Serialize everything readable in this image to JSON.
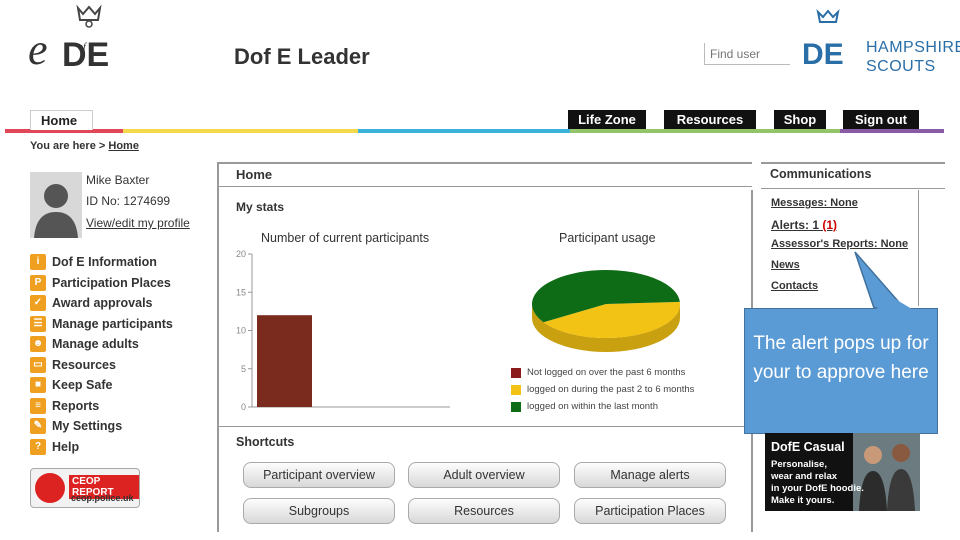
{
  "header": {
    "logo_e": "e",
    "title": "Dof E Leader",
    "find_user_placeholder": "Find user",
    "partner_line1": "HAMPSHIRE",
    "partner_line2": "SCOUTS"
  },
  "nav": {
    "home": "Home",
    "buttons": [
      "Life Zone",
      "Resources",
      "Shop",
      "Sign out"
    ]
  },
  "breadcrumb": {
    "prefix": "You are here >",
    "current": "Home"
  },
  "user": {
    "name": "Mike Baxter",
    "id": "ID No: 1274699",
    "profile_link": "View/edit my profile"
  },
  "menu": [
    {
      "label": "Dof E Information",
      "icon": "info-icon"
    },
    {
      "label": "Participation Places",
      "icon": "places-icon"
    },
    {
      "label": "Award approvals",
      "icon": "check-icon"
    },
    {
      "label": "Manage participants",
      "icon": "participants-icon"
    },
    {
      "label": "Manage adults",
      "icon": "adults-icon"
    },
    {
      "label": "Resources",
      "icon": "folder-icon"
    },
    {
      "label": "Keep Safe",
      "icon": "lock-icon"
    },
    {
      "label": "Reports",
      "icon": "report-icon"
    },
    {
      "label": "My Settings",
      "icon": "settings-icon"
    },
    {
      "label": "Help",
      "icon": "help-icon"
    }
  ],
  "ceop": {
    "title": "CEOP REPORT",
    "url": "ceop.police.uk"
  },
  "main": {
    "title": "Home",
    "stats_title": "My stats",
    "shortcuts_title": "Shortcuts",
    "shortcuts": [
      "Participant overview",
      "Adult overview",
      "Manage alerts",
      "Subgroups",
      "Resources",
      "Participation Places"
    ]
  },
  "chart_data": [
    {
      "type": "bar",
      "title": "Number of current participants",
      "categories": [
        ""
      ],
      "values": [
        12
      ],
      "ylim": [
        0,
        20
      ],
      "yticks": [
        0,
        5,
        10,
        15,
        20
      ],
      "color": "#7b2a1e",
      "grid": false
    },
    {
      "type": "pie",
      "title": "Participant usage",
      "labels": [
        "Not logged on over the past 6 months",
        "logged on during the past 2 to 6 months",
        "logged on within the last month"
      ],
      "values": [
        0,
        42,
        58
      ],
      "colors": [
        "#8b1a1a",
        "#f2c315",
        "#0e6b16"
      ],
      "legend_position": "bottom"
    }
  ],
  "communications": {
    "title": "Communications",
    "messages": "Messages: None",
    "alerts_label": "Alerts: 1",
    "alerts_count": "(1)",
    "assessor_label": "Assessor's Reports:",
    "assessor_value": "None",
    "news": "News",
    "contacts": "Contacts"
  },
  "callout": {
    "text": "The alert pops up for your to approve here"
  },
  "ad": {
    "title": "DofE Casual",
    "line1": "Personalise,",
    "line2": "wear and relax",
    "line3": "in your DofE hoodie.",
    "line4": "Make it yours."
  },
  "colors": {
    "callout": "#5b9bd5",
    "stripe_red": "#e0485a",
    "stripe_yellow": "#f5d94c",
    "stripe_blue": "#3bb3d9",
    "stripe_green": "#94c46a",
    "stripe_purple": "#8a5aa5"
  }
}
